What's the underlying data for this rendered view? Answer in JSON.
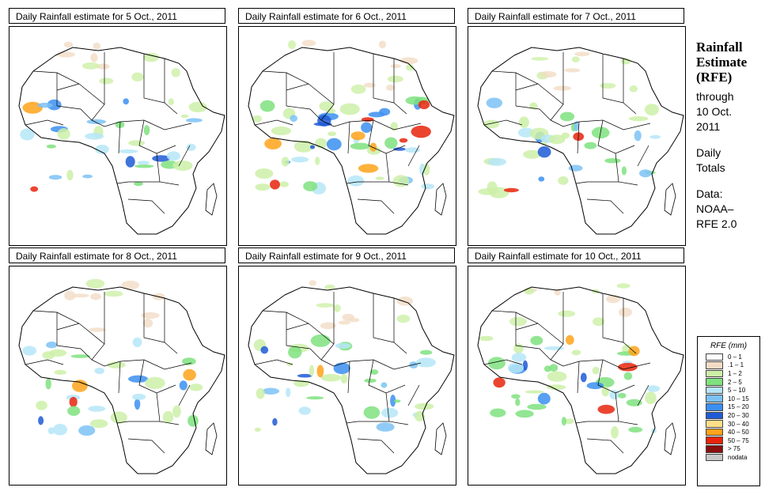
{
  "panels": [
    {
      "title": "Daily Rainfall estimate for  5 Oct., 2011",
      "rain_level": 0.55
    },
    {
      "title": "Daily Rainfall estimate for  6 Oct., 2011",
      "rain_level": 0.9
    },
    {
      "title": "Daily Rainfall estimate for  7 Oct., 2011",
      "rain_level": 0.6
    },
    {
      "title": "Daily Rainfall estimate for  8 Oct., 2011",
      "rain_level": 0.55
    },
    {
      "title": "Daily Rainfall estimate for  9 Oct., 2011",
      "rain_level": 0.6
    },
    {
      "title": "Daily Rainfall estimate for  10 Oct., 2011",
      "rain_level": 0.75
    }
  ],
  "side": {
    "title_line1": "Rainfall",
    "title_line2": "Estimate",
    "title_line3": "(RFE)",
    "through": "through",
    "date_line1": "10 Oct.",
    "date_line2": "2011",
    "daily1": "Daily",
    "daily2": "Totals",
    "data1": "Data:",
    "data2": "NOAA–",
    "data3": "RFE 2.0"
  },
  "legend": {
    "title": "RFE (mm)",
    "items": [
      {
        "label": "0 – 1",
        "color": "#ffffff"
      },
      {
        "label": ".1 – 1",
        "color": "#f3dcc6"
      },
      {
        "label": "1 – 2",
        "color": "#cdf0a8"
      },
      {
        "label": "2 – 5",
        "color": "#7fe27f"
      },
      {
        "label": "5 – 10",
        "color": "#b6e6f8"
      },
      {
        "label": "10 – 15",
        "color": "#7cc2f6"
      },
      {
        "label": "15 – 20",
        "color": "#3b8ff0"
      },
      {
        "label": "20 – 30",
        "color": "#1f5bd6"
      },
      {
        "label": "30 – 40",
        "color": "#ffe08a"
      },
      {
        "label": "40 – 50",
        "color": "#ffa31a"
      },
      {
        "label": "50 – 75",
        "color": "#e8240c"
      },
      {
        "label": "> 75",
        "color": "#8a0f0f"
      },
      {
        "label": "nodata",
        "color": "#c8c8c8"
      }
    ]
  }
}
